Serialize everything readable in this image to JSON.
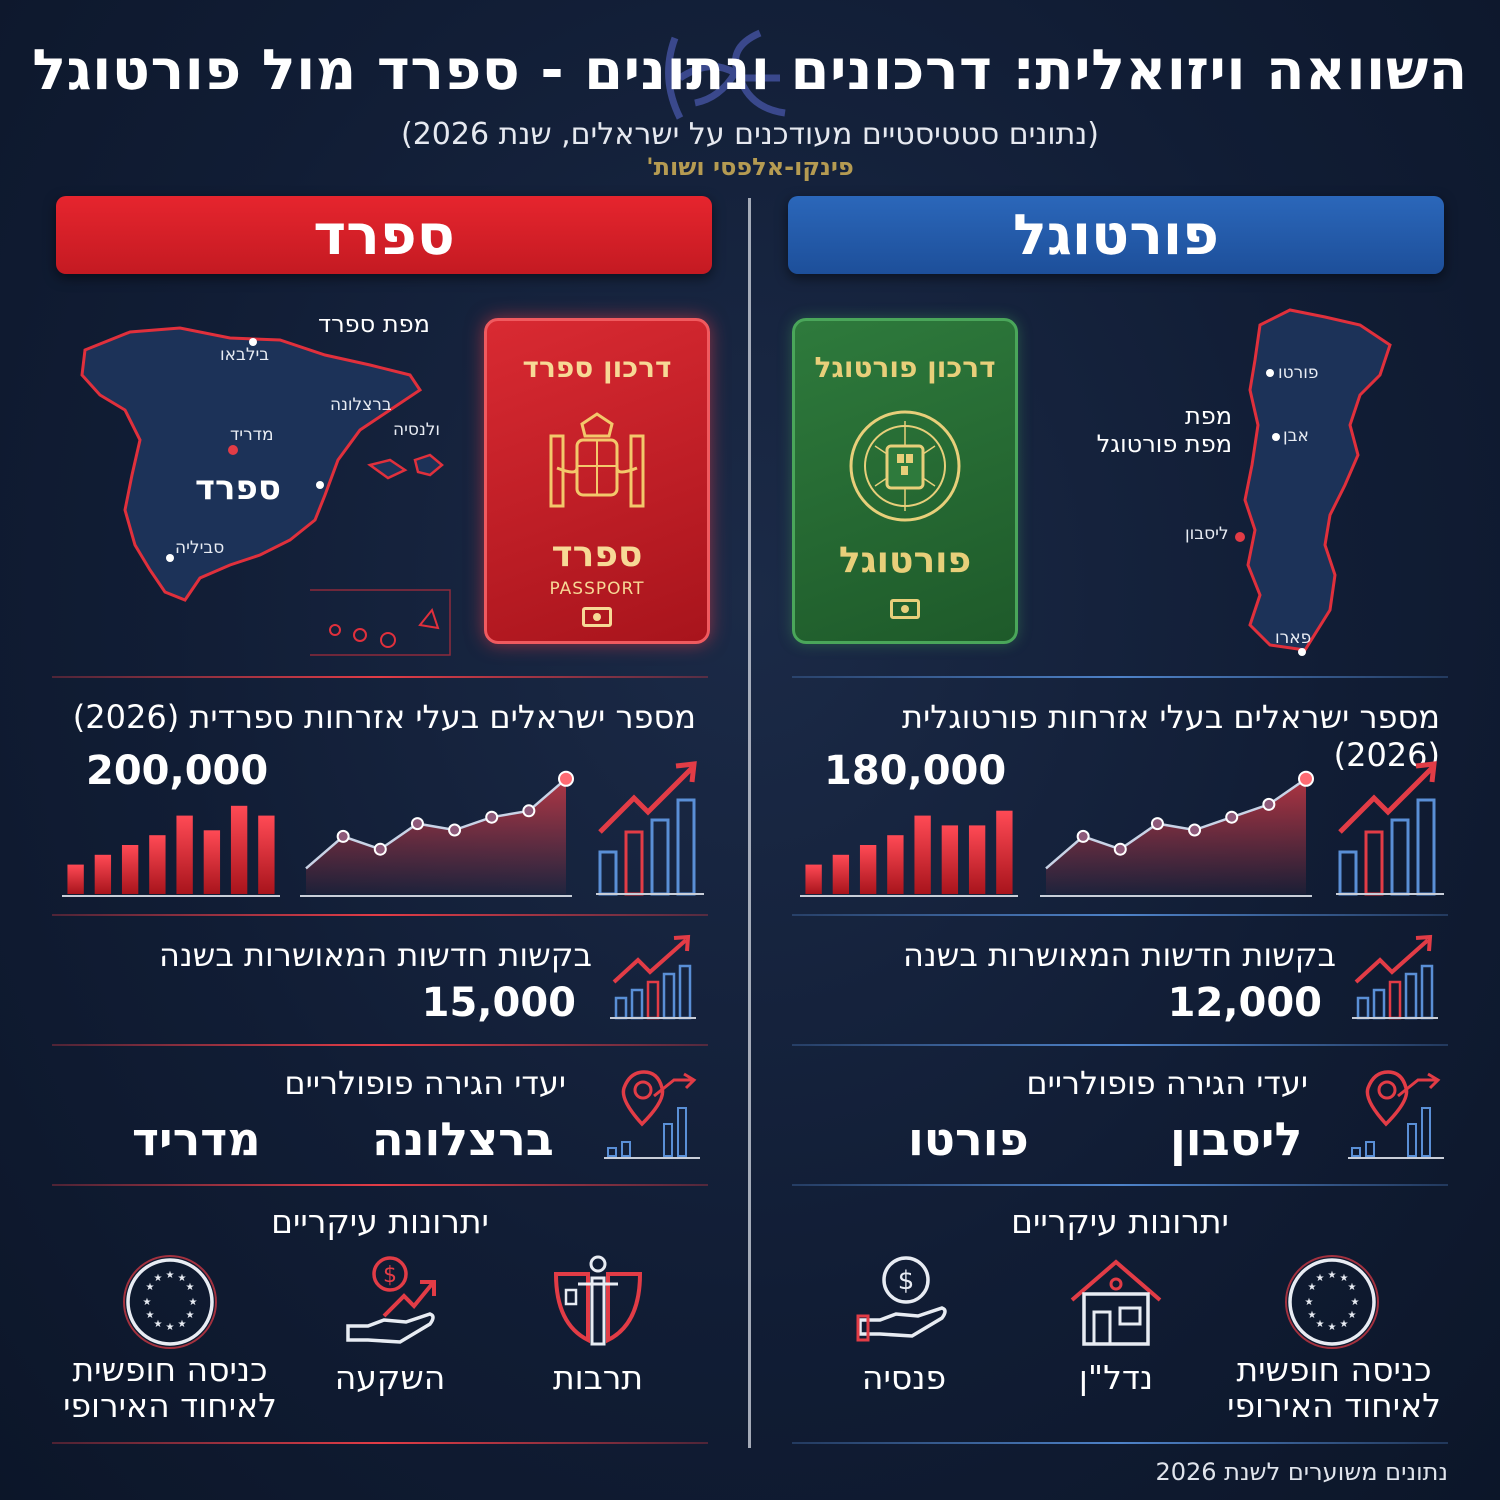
{
  "header": {
    "title": "השוואה ויזואלית: דרכונים ונתונים - ספרד מול פורטוגל",
    "subtitle": "(נתונים סטטיסטיים מעודכנים על ישראלים, שנת 2026)",
    "credit": "פינקו-אלפסי ושות'"
  },
  "spain": {
    "banner": "ספרד",
    "map": {
      "caption": "מפת ספרד",
      "country": "ספרד",
      "cities": [
        "מדריד",
        "ברצלונה",
        "סביליה",
        "בילבאו",
        "ולנסיה"
      ]
    },
    "passport": {
      "title": "דרכון ספרד",
      "name": "ספרד",
      "sub": "PASSPORT"
    },
    "citizens": {
      "label": "מספר ישראלים בעלי אזרחות ספרדית (2026)",
      "value": "200,000"
    },
    "requests": {
      "label": "בקשות חדשות המאושרות בשנה",
      "value": "15,000"
    },
    "destinations": {
      "label": "יעדי הגירה פופולריים",
      "cities": [
        "ברצלונה",
        "מדריד"
      ]
    },
    "advantages": {
      "label": "יתרונות עיקריים",
      "items": [
        {
          "label": "תרבות",
          "icon": "culture-icon"
        },
        {
          "label": "השקעה",
          "icon": "investment-icon"
        },
        {
          "label": "כניסה חופשית לאיחוד האירופי",
          "icon": "eu-stars-icon"
        }
      ]
    }
  },
  "portugal": {
    "banner": "פורטוגל",
    "map": {
      "caption_line1": "מפת",
      "caption_line2": "מפת פורטוגל",
      "cities": [
        "פורטו",
        "אבן",
        "ליסבון",
        "פארו"
      ]
    },
    "passport": {
      "title": "דרכון פורטוגל",
      "name": "פורטוגל"
    },
    "citizens": {
      "label": "מספר ישראלים בעלי אזרחות פורטוגלית (2026)",
      "value": "180,000"
    },
    "requests": {
      "label": "בקשות חדשות המאושרות בשנה",
      "value": "12,000"
    },
    "destinations": {
      "label": "יעדי הגירה פופולריים",
      "cities": [
        "ליסבון",
        "פורטו"
      ]
    },
    "advantages": {
      "label": "יתרונות עיקריים",
      "items": [
        {
          "label": "כניסה חופשית לאיחוד האירופי",
          "icon": "eu-stars-icon"
        },
        {
          "label": "נדל\"ן",
          "icon": "house-icon"
        },
        {
          "label": "פנסיה",
          "icon": "pension-icon"
        }
      ]
    }
  },
  "footnote": "נתונים משוערים לשנת 2026",
  "colors": {
    "spain": "#e23c46",
    "portugal": "#2b67ba",
    "gold": "#b59b52",
    "background": "#111d35"
  },
  "chart_data": [
    {
      "type": "bar",
      "values": [
        3,
        4,
        5,
        6,
        8,
        6.5,
        9,
        8
      ],
      "ylim": [
        0,
        10
      ]
    },
    {
      "type": "area",
      "values": [
        2,
        4.5,
        3.5,
        5.5,
        5,
        6,
        6.5,
        9
      ],
      "ylim": [
        0,
        10
      ]
    },
    {
      "type": "bar",
      "values": [
        3,
        4,
        5,
        6,
        8,
        7,
        7,
        8.5
      ],
      "ylim": [
        0,
        10
      ]
    },
    {
      "type": "area",
      "values": [
        2,
        4.5,
        3.5,
        5.5,
        5,
        6,
        7,
        9
      ],
      "ylim": [
        0,
        10
      ]
    }
  ]
}
